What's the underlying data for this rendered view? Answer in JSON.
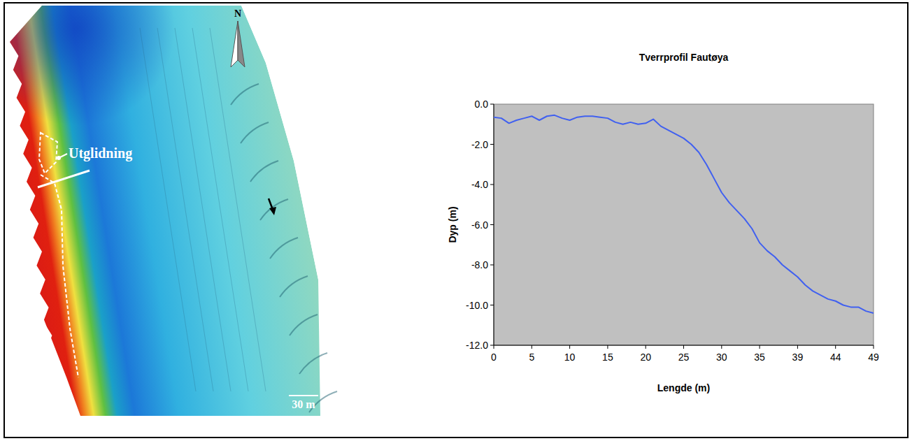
{
  "chart_data": {
    "type": "line",
    "title": "Tverrprofil Fautøya",
    "x_label": "Lengde (m)",
    "y_label": "Dyp (m)",
    "categories": [
      "0",
      null,
      null,
      null,
      null,
      "5",
      null,
      null,
      null,
      null,
      "10",
      null,
      null,
      null,
      null,
      "15",
      null,
      null,
      null,
      null,
      "20",
      null,
      null,
      null,
      null,
      "25",
      null,
      null,
      null,
      null,
      "30",
      null,
      null,
      null,
      null,
      "35",
      null,
      null,
      null,
      null,
      "39",
      null,
      null,
      null,
      null,
      "44",
      null,
      null,
      null,
      null,
      "49"
    ],
    "values": [
      -0.65,
      -0.7,
      -0.95,
      -0.8,
      -0.7,
      -0.6,
      -0.8,
      -0.6,
      -0.55,
      -0.7,
      -0.8,
      -0.65,
      -0.6,
      -0.6,
      -0.65,
      -0.7,
      -0.9,
      -1.0,
      -0.9,
      -1.0,
      -0.95,
      -0.75,
      -1.1,
      -1.3,
      -1.5,
      -1.7,
      -2.0,
      -2.4,
      -3.0,
      -3.7,
      -4.4,
      -4.9,
      -5.3,
      -5.7,
      -6.2,
      -6.9,
      -7.3,
      -7.6,
      -8.0,
      -8.3,
      -8.6,
      -9.0,
      -9.3,
      -9.5,
      -9.7,
      -9.8,
      -10.0,
      -10.1,
      -10.1,
      -10.3,
      -10.4
    ],
    "color": "#4060f0",
    "ylim": [
      -12,
      0
    ],
    "yticks": [
      {
        "value": 0,
        "label": "0.0"
      },
      {
        "value": -2,
        "label": "-2.0"
      },
      {
        "value": -4,
        "label": "-4.0"
      },
      {
        "value": -6,
        "label": "-6.0"
      },
      {
        "value": -8,
        "label": "-8.0"
      },
      {
        "value": -10,
        "label": "-10.0"
      },
      {
        "value": -12,
        "label": "-12.0"
      }
    ],
    "grid": false
  },
  "map": {
    "north_label": "N",
    "annotation": "Utglidning",
    "scale_label": "30 m"
  }
}
